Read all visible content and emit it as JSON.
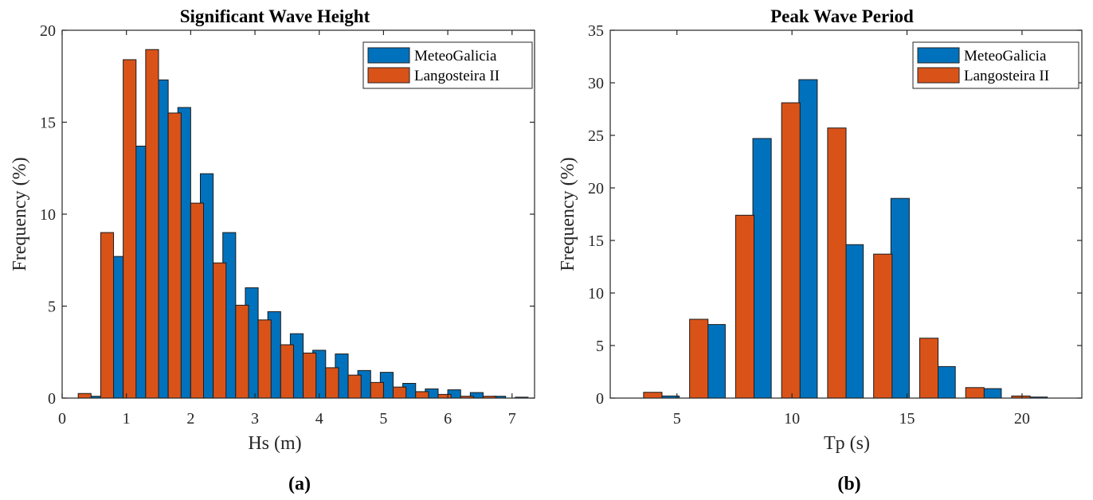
{
  "chart_data": [
    {
      "type": "bar",
      "title": "Significant Wave Height",
      "xlabel": "Hs (m)",
      "ylabel": "Frequency (%)",
      "panel_label": "(a)",
      "xlim": [
        0,
        7.35
      ],
      "ylim": [
        0,
        20
      ],
      "xticks": [
        0,
        1,
        2,
        3,
        4,
        5,
        6,
        7
      ],
      "yticks": [
        0,
        5,
        10,
        15,
        20
      ],
      "legend_position": "top-right",
      "series": [
        {
          "name": "MeteoGalicia",
          "color": "#0072BD",
          "x": [
            0.5,
            0.85,
            1.2,
            1.55,
            1.9,
            2.25,
            2.6,
            2.95,
            3.3,
            3.65,
            4.0,
            4.35,
            4.7,
            5.05,
            5.4,
            5.75,
            6.1,
            6.45,
            6.8,
            7.15
          ],
          "values": [
            0.1,
            7.7,
            13.7,
            17.3,
            15.8,
            12.2,
            9.0,
            6.0,
            4.7,
            3.5,
            2.6,
            2.4,
            1.5,
            1.4,
            0.8,
            0.5,
            0.45,
            0.3,
            0.1,
            0.05
          ]
        },
        {
          "name": "Langosteira II",
          "color": "#D95319",
          "x": [
            0.35,
            0.7,
            1.05,
            1.4,
            1.75,
            2.1,
            2.45,
            2.8,
            3.15,
            3.5,
            3.85,
            4.2,
            4.55,
            4.9,
            5.25,
            5.6,
            5.95,
            6.3,
            6.65
          ],
          "values": [
            0.25,
            9.0,
            18.4,
            18.95,
            15.5,
            10.6,
            7.35,
            5.05,
            4.25,
            2.9,
            2.45,
            1.65,
            1.25,
            0.85,
            0.6,
            0.35,
            0.2,
            0.1,
            0.1
          ]
        }
      ]
    },
    {
      "type": "bar",
      "title": "Peak Wave Period",
      "xlabel": "Tp (s)",
      "ylabel": "Frequency (%)",
      "panel_label": "(b)",
      "xlim": [
        2.1,
        22.6
      ],
      "ylim": [
        0,
        35
      ],
      "xticks": [
        5,
        10,
        15,
        20
      ],
      "yticks": [
        0,
        5,
        10,
        15,
        20,
        25,
        30,
        35
      ],
      "legend_position": "top-right",
      "series": [
        {
          "name": "MeteoGalicia",
          "color": "#0072BD",
          "x": [
            4.7,
            6.7,
            8.7,
            10.7,
            12.7,
            14.7,
            16.7,
            18.7,
            20.7
          ],
          "values": [
            0.2,
            7.0,
            24.7,
            30.3,
            14.6,
            19.0,
            3.0,
            0.9,
            0.1
          ]
        },
        {
          "name": "Langosteira II",
          "color": "#D95319",
          "x": [
            3.95,
            5.95,
            7.95,
            9.95,
            11.95,
            13.95,
            15.95,
            17.95,
            19.95
          ],
          "values": [
            0.55,
            7.5,
            17.4,
            28.1,
            25.7,
            13.7,
            5.7,
            1.0,
            0.2
          ]
        }
      ]
    }
  ]
}
